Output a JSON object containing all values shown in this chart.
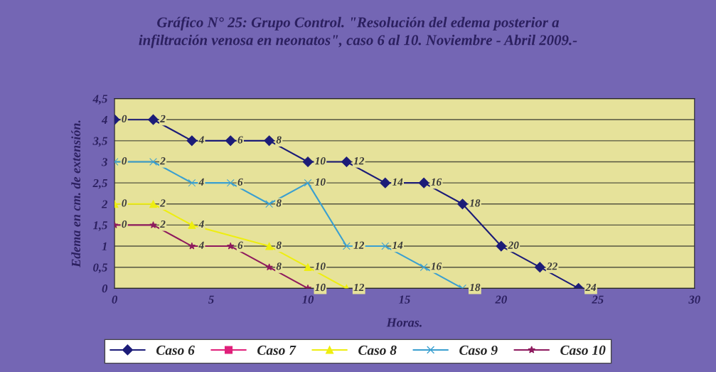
{
  "chart_data": {
    "type": "line",
    "title": "Gráfico N° 25: Grupo Control. \"Resolución del edema posterior a\ninfiltración venosa en neonatos\", caso 6 al 10. Noviembre - Abril 2009.-",
    "xlabel": "Horas.",
    "ylabel": "Edema en cm. de extensión.",
    "xlim": [
      0,
      30
    ],
    "xticks": [
      0,
      5,
      10,
      15,
      20,
      25,
      30
    ],
    "ylim": [
      0,
      4.5
    ],
    "yticks": [
      0,
      {
        "value": 0.5,
        "label": "0,5"
      },
      1,
      {
        "value": 1.5,
        "label": "1,5"
      },
      2,
      {
        "value": 2.5,
        "label": "2,5"
      },
      3,
      {
        "value": 3.5,
        "label": "3,5"
      },
      4,
      {
        "value": 4.5,
        "label": "4,5"
      }
    ],
    "grid": "y",
    "legend": "bottom",
    "series": [
      {
        "name": "Caso 6",
        "color": "#1c1c78",
        "marker": "diamond",
        "x": [
          0,
          2,
          4,
          6,
          8,
          10,
          12,
          14,
          16,
          18,
          20,
          22,
          24
        ],
        "values": [
          4,
          4,
          3.5,
          3.5,
          3.5,
          3,
          3,
          2.5,
          2.5,
          2,
          1,
          0.5,
          0
        ]
      },
      {
        "name": "Caso 7",
        "color": "#e0207a",
        "marker": "square"
      },
      {
        "name": "Caso 8",
        "color": "#eeee10",
        "marker": "triangle",
        "x": [
          0,
          2,
          4,
          6,
          8,
          10,
          12
        ],
        "values": [
          2,
          2,
          1.5,
          null,
          1,
          0.5,
          0
        ]
      },
      {
        "name": "Caso 9",
        "color": "#3a9fd0",
        "marker": "cross",
        "x": [
          0,
          2,
          4,
          6,
          8,
          10,
          12,
          14,
          16,
          18
        ],
        "values": [
          3,
          3,
          2.5,
          2.5,
          2,
          2.5,
          1,
          1,
          0.5,
          0
        ]
      },
      {
        "name": "Caso 10",
        "color": "#8e1a5e",
        "marker": "star",
        "x": [
          0,
          2,
          4,
          6,
          8,
          10
        ],
        "values": [
          1.5,
          1.5,
          1,
          1,
          0.5,
          0
        ]
      }
    ],
    "annotations": [
      {
        "text": "0",
        "x": 0,
        "y": 4
      },
      {
        "text": "2",
        "x": 2,
        "y": 4
      },
      {
        "text": "4",
        "x": 4,
        "y": 3.5
      },
      {
        "text": "6",
        "x": 6,
        "y": 3.5
      },
      {
        "text": "8",
        "x": 8,
        "y": 3.5
      },
      {
        "text": "10",
        "x": 10,
        "y": 3
      },
      {
        "text": "12",
        "x": 12,
        "y": 3
      },
      {
        "text": "14",
        "x": 14,
        "y": 2.5
      },
      {
        "text": "16",
        "x": 16,
        "y": 2.5
      },
      {
        "text": "18",
        "x": 18,
        "y": 2
      },
      {
        "text": "20",
        "x": 20,
        "y": 1
      },
      {
        "text": "22",
        "x": 22,
        "y": 0.5
      },
      {
        "text": "24",
        "x": 24,
        "y": 0
      },
      {
        "text": "0",
        "x": 0,
        "y": 2
      },
      {
        "text": "2",
        "x": 2,
        "y": 2
      },
      {
        "text": "4",
        "x": 4,
        "y": 1.5
      },
      {
        "text": "8",
        "x": 8,
        "y": 1
      },
      {
        "text": "10",
        "x": 10,
        "y": 0.5
      },
      {
        "text": "12",
        "x": 12,
        "y": 0
      },
      {
        "text": "0",
        "x": 0,
        "y": 3
      },
      {
        "text": "2",
        "x": 2,
        "y": 3
      },
      {
        "text": "4",
        "x": 4,
        "y": 2.5
      },
      {
        "text": "6",
        "x": 6,
        "y": 2.5
      },
      {
        "text": "8",
        "x": 8,
        "y": 2
      },
      {
        "text": "10",
        "x": 10,
        "y": 2.5
      },
      {
        "text": "12",
        "x": 12,
        "y": 1
      },
      {
        "text": "14",
        "x": 14,
        "y": 1
      },
      {
        "text": "16",
        "x": 16,
        "y": 0.5
      },
      {
        "text": "18",
        "x": 18,
        "y": 0
      },
      {
        "text": "0",
        "x": 0,
        "y": 1.5
      },
      {
        "text": "2",
        "x": 2,
        "y": 1.5
      },
      {
        "text": "4",
        "x": 4,
        "y": 1
      },
      {
        "text": "6",
        "x": 6,
        "y": 1
      },
      {
        "text": "8",
        "x": 8,
        "y": 0.5
      },
      {
        "text": "10",
        "x": 10,
        "y": 0
      }
    ]
  }
}
